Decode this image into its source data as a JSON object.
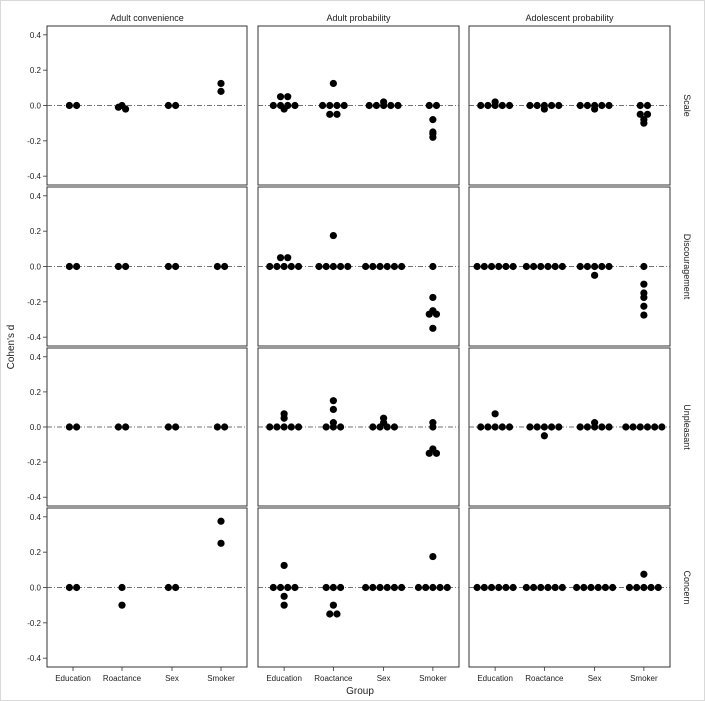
{
  "chart_data": {
    "type": "scatter",
    "subtype": "faceted dot plot",
    "xlabel": "Group",
    "ylabel": "Cohen's d",
    "ylim": [
      -0.45,
      0.45
    ],
    "yticks": [
      -0.4,
      -0.2,
      0.0,
      0.2,
      0.4
    ],
    "ytick_labels": [
      "-0.4",
      "-0.2",
      "0.0",
      "0.2",
      "0.4"
    ],
    "categories": [
      "Education",
      "Roactance",
      "Sex",
      "Smoker"
    ],
    "columns": [
      "Adult convenience",
      "Adult probability",
      "Adolescent probability"
    ],
    "rows": [
      "Scale",
      "Discouragement",
      "Unpleasant",
      "Concern"
    ],
    "reference_line": 0.0,
    "grid": false,
    "point_color": "#000000",
    "panels": [
      [
        {
          "Education": [
            0,
            0
          ],
          "Roactance": [
            0,
            -0.01,
            -0.02
          ],
          "Sex": [
            0,
            0
          ],
          "Smoker": [
            0.125,
            0.08
          ]
        },
        {
          "Education": [
            0,
            0,
            0,
            0,
            -0.02,
            0.05,
            0.05
          ],
          "Roactance": [
            0,
            0,
            0,
            0,
            -0.05,
            -0.05,
            0.125
          ],
          "Sex": [
            0,
            0,
            0,
            0,
            0,
            0.02
          ],
          "Smoker": [
            0,
            0,
            -0.08,
            -0.15,
            -0.16,
            -0.18
          ]
        },
        {
          "Education": [
            0,
            0,
            0,
            0,
            0,
            0.02
          ],
          "Roactance": [
            0,
            0,
            0,
            0,
            0,
            -0.02
          ],
          "Sex": [
            0,
            0,
            0,
            0,
            0,
            -0.02
          ],
          "Smoker": [
            0,
            0,
            -0.05,
            -0.05,
            -0.08,
            -0.1
          ]
        }
      ],
      [
        {
          "Education": [
            0,
            0
          ],
          "Roactance": [
            0,
            0
          ],
          "Sex": [
            0,
            0
          ],
          "Smoker": [
            0,
            0
          ]
        },
        {
          "Education": [
            0,
            0,
            0,
            0,
            0,
            0.05,
            0.05
          ],
          "Roactance": [
            0,
            0,
            0,
            0,
            0,
            0.175
          ],
          "Sex": [
            0,
            0,
            0,
            0,
            0,
            0
          ],
          "Smoker": [
            0,
            -0.175,
            -0.25,
            -0.27,
            -0.27,
            -0.35
          ]
        },
        {
          "Education": [
            0,
            0,
            0,
            0,
            0,
            0
          ],
          "Roactance": [
            0,
            0,
            0,
            0,
            0,
            0
          ],
          "Sex": [
            0,
            0,
            0,
            0,
            0,
            -0.05
          ],
          "Smoker": [
            0,
            -0.1,
            -0.15,
            -0.175,
            -0.225,
            -0.275
          ]
        }
      ],
      [
        {
          "Education": [
            0,
            0
          ],
          "Roactance": [
            0,
            0
          ],
          "Sex": [
            0,
            0
          ],
          "Smoker": [
            0,
            0
          ]
        },
        {
          "Education": [
            0,
            0,
            0,
            0,
            0,
            0.05,
            0.075
          ],
          "Roactance": [
            0,
            0,
            0,
            0.025,
            0.1,
            0.15
          ],
          "Sex": [
            0,
            0,
            0,
            0,
            0.025,
            0.05
          ],
          "Smoker": [
            0,
            0.025,
            -0.125,
            -0.15,
            -0.15
          ]
        },
        {
          "Education": [
            0,
            0,
            0,
            0,
            0,
            0.075
          ],
          "Roactance": [
            0,
            0,
            0,
            0,
            0,
            -0.05
          ],
          "Sex": [
            0,
            0,
            0,
            0,
            0,
            0.025
          ],
          "Smoker": [
            0,
            0,
            0,
            0,
            0,
            0
          ]
        }
      ],
      [
        {
          "Education": [
            0,
            0
          ],
          "Roactance": [
            0,
            -0.1
          ],
          "Sex": [
            0,
            0
          ],
          "Smoker": [
            0.375,
            0.25
          ]
        },
        {
          "Education": [
            0,
            0,
            0,
            0,
            -0.05,
            -0.1,
            0.125
          ],
          "Roactance": [
            0,
            0,
            0,
            -0.1,
            -0.15,
            -0.15
          ],
          "Sex": [
            0,
            0,
            0,
            0,
            0,
            0
          ],
          "Smoker": [
            0,
            0,
            0,
            0,
            0,
            0.175
          ]
        },
        {
          "Education": [
            0,
            0,
            0,
            0,
            0,
            0
          ],
          "Roactance": [
            0,
            0,
            0,
            0,
            0,
            0
          ],
          "Sex": [
            0,
            0,
            0,
            0,
            0,
            0
          ],
          "Smoker": [
            0,
            0,
            0,
            0,
            0,
            0.075
          ]
        }
      ]
    ]
  }
}
